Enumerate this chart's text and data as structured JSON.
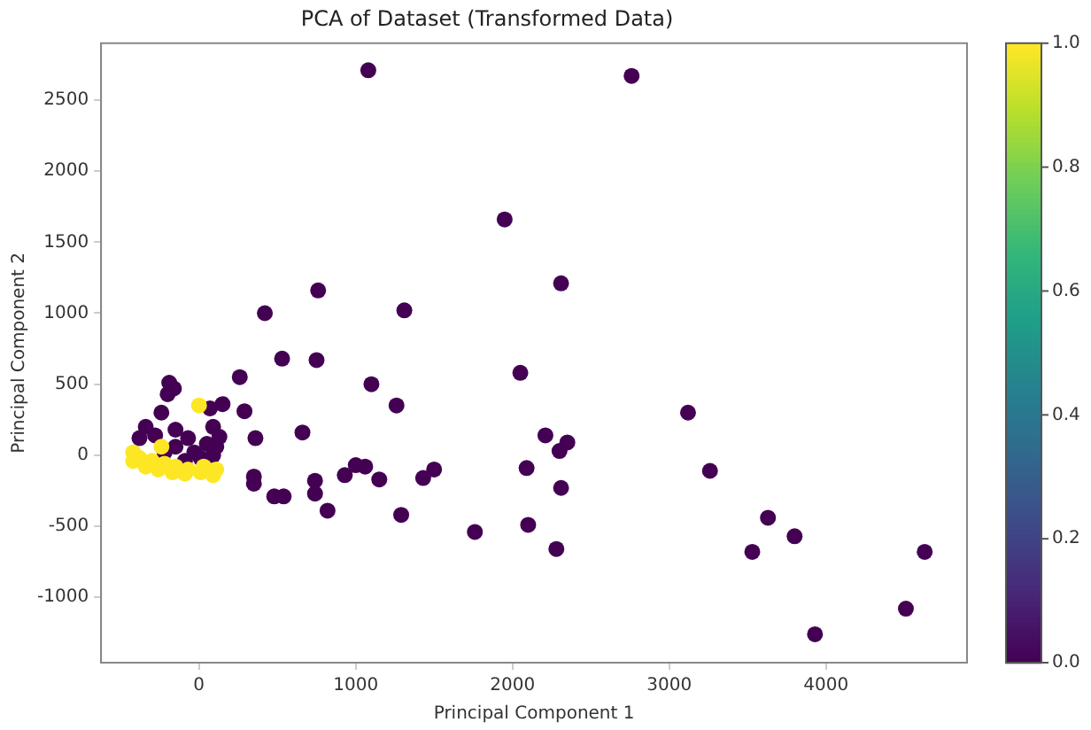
{
  "chart_data": {
    "type": "scatter",
    "title": "PCA of Dataset (Transformed Data)",
    "xlabel": "Principal Component 1",
    "ylabel": "Principal Component 2",
    "xlim": [
      -625,
      4900
    ],
    "xticks": [
      0,
      1000,
      2000,
      3000,
      4000
    ],
    "ylim": [
      -1460,
      2900
    ],
    "yticks": [
      -1000,
      -500,
      0,
      500,
      1000,
      1500,
      2000,
      2500
    ],
    "grid": false,
    "marker": "circle",
    "clim": [
      0,
      1
    ],
    "cticks": [
      {
        "value": 0,
        "label": "0.0"
      },
      {
        "value": 0.2,
        "label": "0.2"
      },
      {
        "value": 0.4,
        "label": "0.4"
      },
      {
        "value": 0.6,
        "label": "0.6"
      },
      {
        "value": 0.8,
        "label": "0.8"
      },
      {
        "value": 1,
        "label": "1.0"
      }
    ],
    "series": [
      {
        "x": [
          1080,
          2760,
          1950,
          2310,
          760,
          1310,
          420,
          530,
          750,
          2050,
          1100,
          260,
          1260,
          3120,
          660,
          2210,
          2350,
          2300,
          360,
          290,
          150,
          70,
          -200,
          -160,
          1000,
          1060,
          930,
          1150,
          1500,
          1430,
          2090,
          3260,
          350,
          350,
          740,
          740,
          480,
          540,
          820,
          1290,
          2310,
          1760,
          2100,
          2280,
          3630,
          3800,
          3530,
          4630,
          4510,
          3930,
          -190,
          -240,
          -340,
          -280,
          -380,
          -150,
          -70,
          -150,
          -30,
          50,
          90,
          90,
          10,
          -90,
          -220,
          130,
          110,
          0,
          -240,
          -420,
          -380,
          -300,
          -220,
          -150,
          -70,
          10,
          90,
          -420,
          -340,
          -260,
          -170,
          -90,
          30,
          110
        ],
        "values": [
          2710,
          2670,
          1660,
          1210,
          1160,
          1020,
          1000,
          680,
          670,
          580,
          500,
          550,
          350,
          300,
          160,
          140,
          90,
          30,
          120,
          310,
          360,
          330,
          430,
          470,
          -70,
          -80,
          -140,
          -170,
          -100,
          -160,
          -90,
          -110,
          -150,
          -200,
          -180,
          -270,
          -290,
          -290,
          -390,
          -420,
          -230,
          -540,
          -490,
          -660,
          -440,
          -570,
          -680,
          -680,
          -1080,
          -1260,
          510,
          300,
          200,
          140,
          120,
          180,
          120,
          60,
          20,
          80,
          200,
          0,
          -20,
          -40,
          20,
          130,
          60,
          350,
          60,
          20,
          -20,
          -40,
          -60,
          -80,
          -100,
          -120,
          -140,
          -40,
          -80,
          -100,
          -120,
          -130,
          -80,
          -100
        ],
        "cvalues": [
          0,
          0,
          0,
          0,
          0,
          0,
          0,
          0,
          0,
          0,
          0,
          0,
          0,
          0,
          0,
          0,
          0,
          0,
          0,
          0,
          0,
          0,
          0,
          0,
          0,
          0,
          0,
          0,
          0,
          0,
          0,
          0,
          0,
          0,
          0,
          0,
          0,
          0,
          0,
          0,
          0,
          0,
          0,
          0,
          0,
          0,
          0,
          0,
          0,
          0,
          0,
          0,
          0,
          0,
          0,
          0,
          0,
          0,
          0,
          0,
          0,
          0,
          0,
          0,
          0,
          0,
          0,
          1,
          1,
          1,
          1,
          1,
          1,
          1,
          1,
          1,
          1,
          1,
          1,
          1,
          1,
          1,
          1,
          1
        ]
      }
    ]
  }
}
